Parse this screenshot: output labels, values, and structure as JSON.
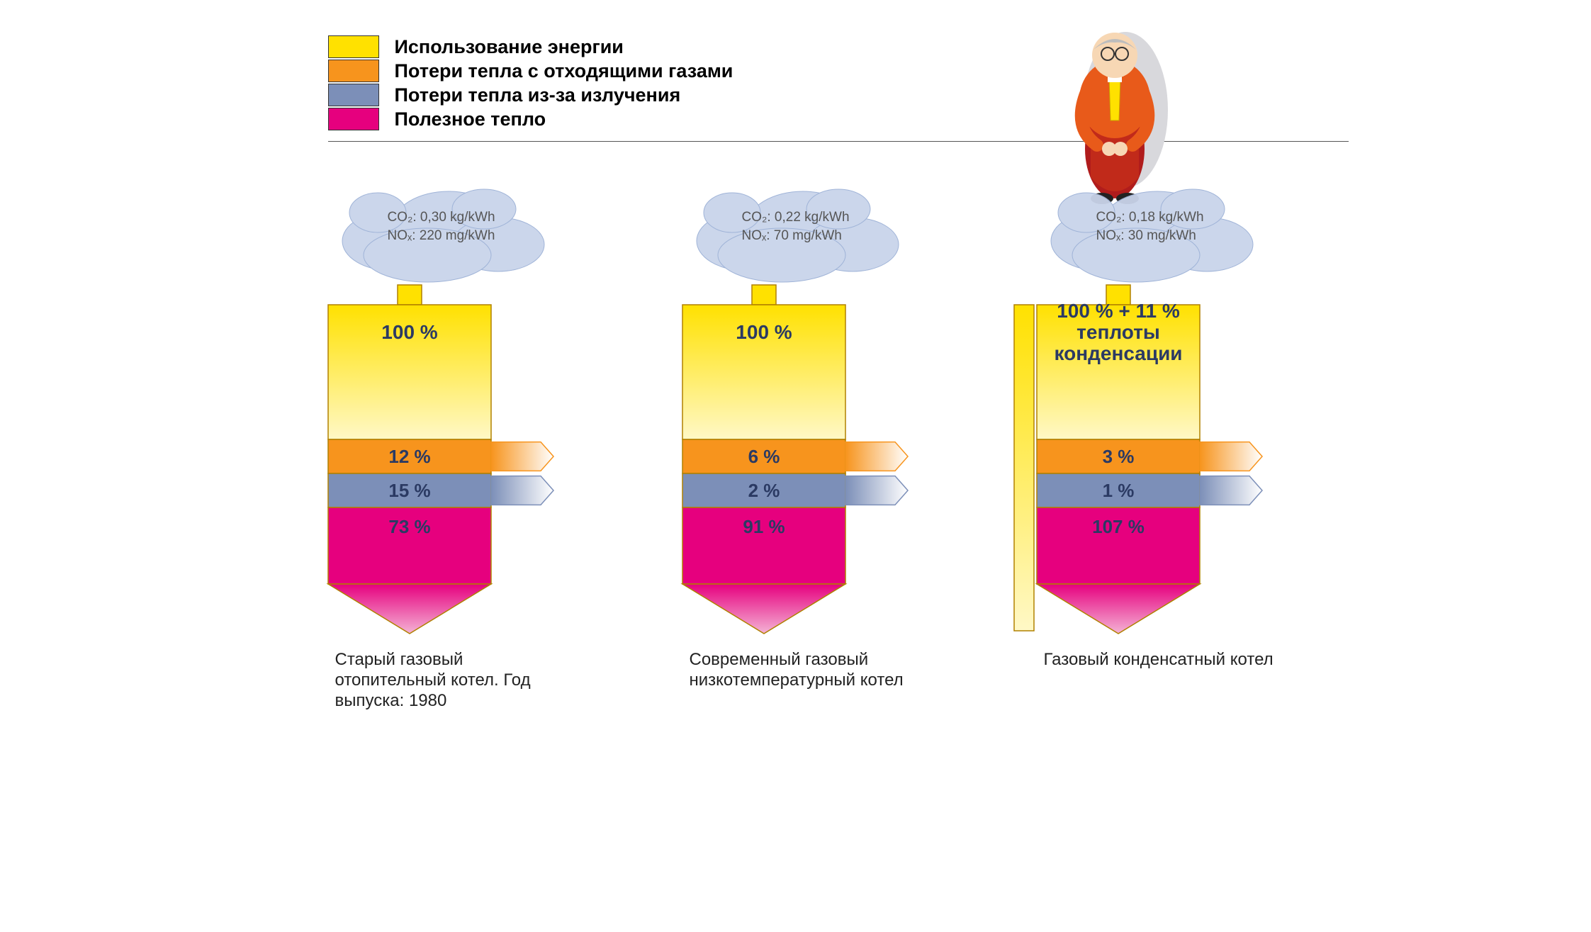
{
  "legend": {
    "items": [
      {
        "label": "Использование энергии",
        "color": "#ffe100"
      },
      {
        "label": "Потери тепла с отходящими газами",
        "color": "#f7941d"
      },
      {
        "label": "Потери тепла из-за излучения",
        "color": "#7c8fb8"
      },
      {
        "label": "Полезное тепло",
        "color": "#e6007e"
      }
    ],
    "swatch_border": "#333333",
    "label_fontsize": 27
  },
  "boilers": [
    {
      "emissions": {
        "co2": "CO₂: 0,30 kg/kWh",
        "nox": "NOₓ: 220 mg/kWh"
      },
      "top_label": "100 %",
      "top_lines": [
        "100 %"
      ],
      "segments": {
        "exhaust": {
          "value": 12,
          "label": "12 %",
          "color": "#f7941d"
        },
        "radiation": {
          "value": 15,
          "label": "15 %",
          "color": "#7c8fb8"
        },
        "useful": {
          "value": 73,
          "label": "73 %",
          "color": "#e6007e"
        }
      },
      "extra_side": false,
      "caption": "Старый газовый отопительный котел. Год выпуска: 1980"
    },
    {
      "emissions": {
        "co2": "CO₂: 0,22 kg/kWh",
        "nox": "NOₓ: 70 mg/kWh"
      },
      "top_label": "100 %",
      "top_lines": [
        "100 %"
      ],
      "segments": {
        "exhaust": {
          "value": 6,
          "label": "6 %",
          "color": "#f7941d"
        },
        "radiation": {
          "value": 2,
          "label": "2 %",
          "color": "#7c8fb8"
        },
        "useful": {
          "value": 91,
          "label": "91 %",
          "color": "#e6007e"
        }
      },
      "extra_side": false,
      "caption": "Современный газовый низкотемпературный котел"
    },
    {
      "emissions": {
        "co2": "CO₂: 0,18 kg/kWh",
        "nox": "NOₓ: 30 mg/kWh"
      },
      "top_label": "100 % + 11 % теплоты конденсации",
      "top_lines": [
        "100 % + 11 %",
        "теплоты",
        "конденсации"
      ],
      "segments": {
        "exhaust": {
          "value": 3,
          "label": "3 %",
          "color": "#f7941d"
        },
        "radiation": {
          "value": 1,
          "label": "1 %",
          "color": "#7c8fb8"
        },
        "useful": {
          "value": 107,
          "label": "107 %",
          "color": "#e6007e"
        }
      },
      "extra_side": true,
      "caption": "Газовый конденсатный котел"
    }
  ],
  "styling": {
    "energy_color": "#ffe100",
    "energy_fade": "#fff8c6",
    "exhaust_color": "#f7941d",
    "radiation_color": "#7c8fb8",
    "useful_color": "#e6007e",
    "useful_fade": "#f4b3d5",
    "label_color": "#2b3a63",
    "cloud_fill": "#c9d4ea",
    "cloud_stroke": "#9bb0d6",
    "outline": "#b08000",
    "caption_fontsize": 24,
    "seg_label_fontsize": 26,
    "top_label_fontsize": 28,
    "boiler_body_width": 230,
    "arrow_tip_height": 70,
    "boiler_total_height": 560
  }
}
